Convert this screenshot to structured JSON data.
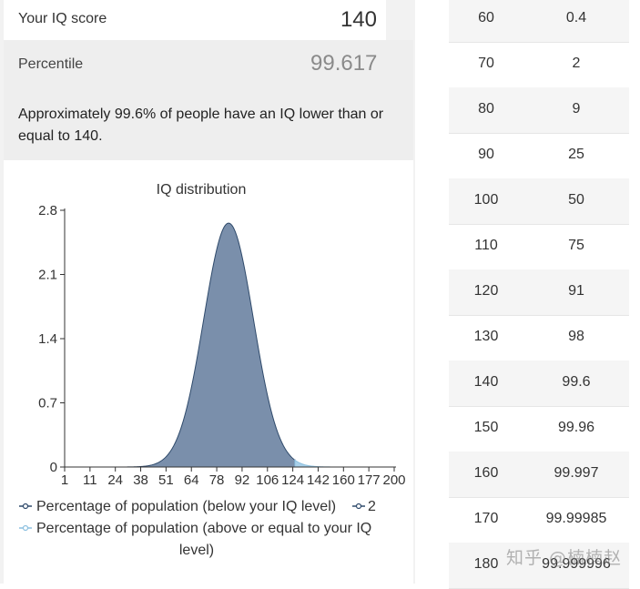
{
  "calculator": {
    "iq_label": "Your IQ score",
    "iq_value": "140",
    "percentile_label": "Percentile",
    "percentile_value": "99.617",
    "description": "Approximately 99.6% of people have an IQ lower than or equal to 140."
  },
  "chart_data": {
    "type": "area",
    "title": "IQ distribution",
    "xlabel": "",
    "ylabel": "",
    "x_ticks": [
      "1",
      "11",
      "24",
      "38",
      "51",
      "64",
      "78",
      "92",
      "106",
      "124",
      "142",
      "160",
      "177",
      "200"
    ],
    "y_ticks": [
      "0",
      "0.7",
      "1.4",
      "2.1",
      "2.8"
    ],
    "ylim": [
      0,
      2.8
    ],
    "xlim": [
      1,
      200
    ],
    "distribution": {
      "mean": 100,
      "sd": 15,
      "peak": 2.66
    },
    "threshold": 140,
    "series": [
      {
        "name": "Percentage of population (below your IQ level)",
        "color": "#7a8fab",
        "range": [
          1,
          140
        ]
      },
      {
        "name": "2",
        "color": "#2f4a6b"
      },
      {
        "name": "Percentage of population (above or equal to your IQ level)",
        "color": "#a8d0ea",
        "range": [
          140,
          200
        ]
      }
    ],
    "legend_position": "bottom"
  },
  "table": {
    "rows": [
      {
        "iq": "60",
        "pct": "0.4"
      },
      {
        "iq": "70",
        "pct": "2"
      },
      {
        "iq": "80",
        "pct": "9"
      },
      {
        "iq": "90",
        "pct": "25"
      },
      {
        "iq": "100",
        "pct": "50"
      },
      {
        "iq": "110",
        "pct": "75"
      },
      {
        "iq": "120",
        "pct": "91"
      },
      {
        "iq": "130",
        "pct": "98"
      },
      {
        "iq": "140",
        "pct": "99.6"
      },
      {
        "iq": "150",
        "pct": "99.96"
      },
      {
        "iq": "160",
        "pct": "99.997"
      },
      {
        "iq": "170",
        "pct": "99.99985"
      },
      {
        "iq": "180",
        "pct": "99.999996"
      }
    ]
  },
  "watermark": "知乎 @楠楠赵"
}
